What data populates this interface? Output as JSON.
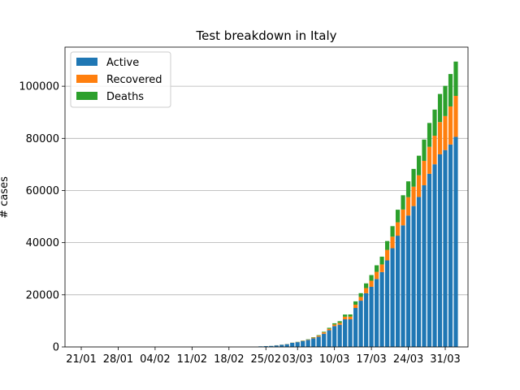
{
  "chart_data": {
    "type": "bar",
    "stacked": true,
    "title": "Test breakdown in Italy",
    "xlabel": "",
    "ylabel": "# cases",
    "ylim": [
      0,
      115000
    ],
    "yticks": [
      0,
      20000,
      40000,
      60000,
      80000,
      100000
    ],
    "ytick_labels": [
      "0",
      "20000",
      "40000",
      "60000",
      "80000",
      "100000"
    ],
    "grid": "horizontal",
    "legend_position": "top-left",
    "x_start_date": "2020-01-21",
    "xticks": [
      {
        "index": 0,
        "label": "21/01"
      },
      {
        "index": 7,
        "label": "28/01"
      },
      {
        "index": 14,
        "label": "04/02"
      },
      {
        "index": 21,
        "label": "11/02"
      },
      {
        "index": 28,
        "label": "18/02"
      },
      {
        "index": 35,
        "label": "25/02"
      },
      {
        "index": 41,
        "label": "03/03"
      },
      {
        "index": 48,
        "label": "10/03"
      },
      {
        "index": 55,
        "label": "17/03"
      },
      {
        "index": 62,
        "label": "24/03"
      },
      {
        "index": 69,
        "label": "31/03"
      }
    ],
    "categories": [
      "21/01",
      "22/01",
      "23/01",
      "24/01",
      "25/01",
      "26/01",
      "27/01",
      "28/01",
      "29/01",
      "30/01",
      "31/01",
      "01/02",
      "02/02",
      "03/02",
      "04/02",
      "05/02",
      "06/02",
      "07/02",
      "08/02",
      "09/02",
      "10/02",
      "11/02",
      "12/02",
      "13/02",
      "14/02",
      "15/02",
      "16/02",
      "17/02",
      "18/02",
      "19/02",
      "20/02",
      "21/02",
      "22/02",
      "23/02",
      "24/02",
      "25/02",
      "26/02",
      "27/02",
      "28/02",
      "29/02",
      "01/03",
      "02/03",
      "03/03",
      "04/03",
      "05/03",
      "06/03",
      "07/03",
      "08/03",
      "09/03",
      "10/03",
      "11/03",
      "12/03",
      "13/03",
      "14/03",
      "15/03",
      "16/03",
      "17/03",
      "18/03",
      "19/03",
      "20/03",
      "21/03",
      "22/03",
      "23/03",
      "24/03",
      "25/03",
      "26/03",
      "27/03",
      "28/03",
      "29/03",
      "30/03",
      "31/03",
      "01/04"
    ],
    "series": [
      {
        "name": "Active",
        "color": "#1f77b4",
        "values": [
          0,
          0,
          0,
          0,
          0,
          0,
          0,
          0,
          0,
          0,
          0,
          0,
          0,
          0,
          0,
          0,
          0,
          0,
          0,
          0,
          0,
          0,
          0,
          0,
          0,
          0,
          0,
          0,
          0,
          0,
          0,
          0,
          0,
          0,
          221,
          311,
          385,
          588,
          821,
          1049,
          1577,
          1835,
          2263,
          2706,
          3296,
          3916,
          5061,
          6387,
          7985,
          8514,
          10590,
          10590,
          14955,
          17750,
          20603,
          23073,
          26062,
          28710,
          33190,
          37860,
          42681,
          46638,
          50418,
          54030,
          57521,
          62013,
          66414,
          70065,
          73880,
          75528,
          77635,
          80572
        ],
        "values_note": "visual estimates"
      },
      {
        "name": "Recovered",
        "color": "#ff7f0e",
        "values": [
          0,
          0,
          0,
          0,
          0,
          0,
          0,
          0,
          0,
          0,
          0,
          0,
          0,
          0,
          0,
          0,
          0,
          0,
          0,
          0,
          0,
          0,
          0,
          0,
          0,
          0,
          0,
          0,
          0,
          0,
          0,
          0,
          0,
          0,
          1,
          3,
          3,
          45,
          46,
          46,
          50,
          83,
          149,
          160,
          276,
          414,
          523,
          589,
          622,
          724,
          1004,
          1045,
          1258,
          1439,
          1966,
          2335,
          2749,
          2941,
          4025,
          4440,
          5129,
          6072,
          7024,
          7432,
          8326,
          9362,
          10361,
          10950,
          12384,
          13030,
          14620,
          15729
        ]
      },
      {
        "name": "Deaths",
        "color": "#2ca02c",
        "values": [
          0,
          0,
          0,
          0,
          0,
          0,
          0,
          0,
          0,
          0,
          0,
          0,
          0,
          0,
          0,
          0,
          0,
          0,
          0,
          0,
          0,
          0,
          0,
          0,
          0,
          0,
          0,
          0,
          0,
          0,
          0,
          0,
          0,
          0,
          7,
          10,
          12,
          17,
          21,
          29,
          34,
          52,
          79,
          107,
          148,
          197,
          233,
          366,
          463,
          631,
          827,
          827,
          1266,
          1441,
          1809,
          2158,
          2503,
          2978,
          3405,
          4032,
          4825,
          5476,
          6077,
          6820,
          7503,
          8165,
          9134,
          10023,
          10779,
          11591,
          12428,
          13155
        ]
      }
    ]
  }
}
